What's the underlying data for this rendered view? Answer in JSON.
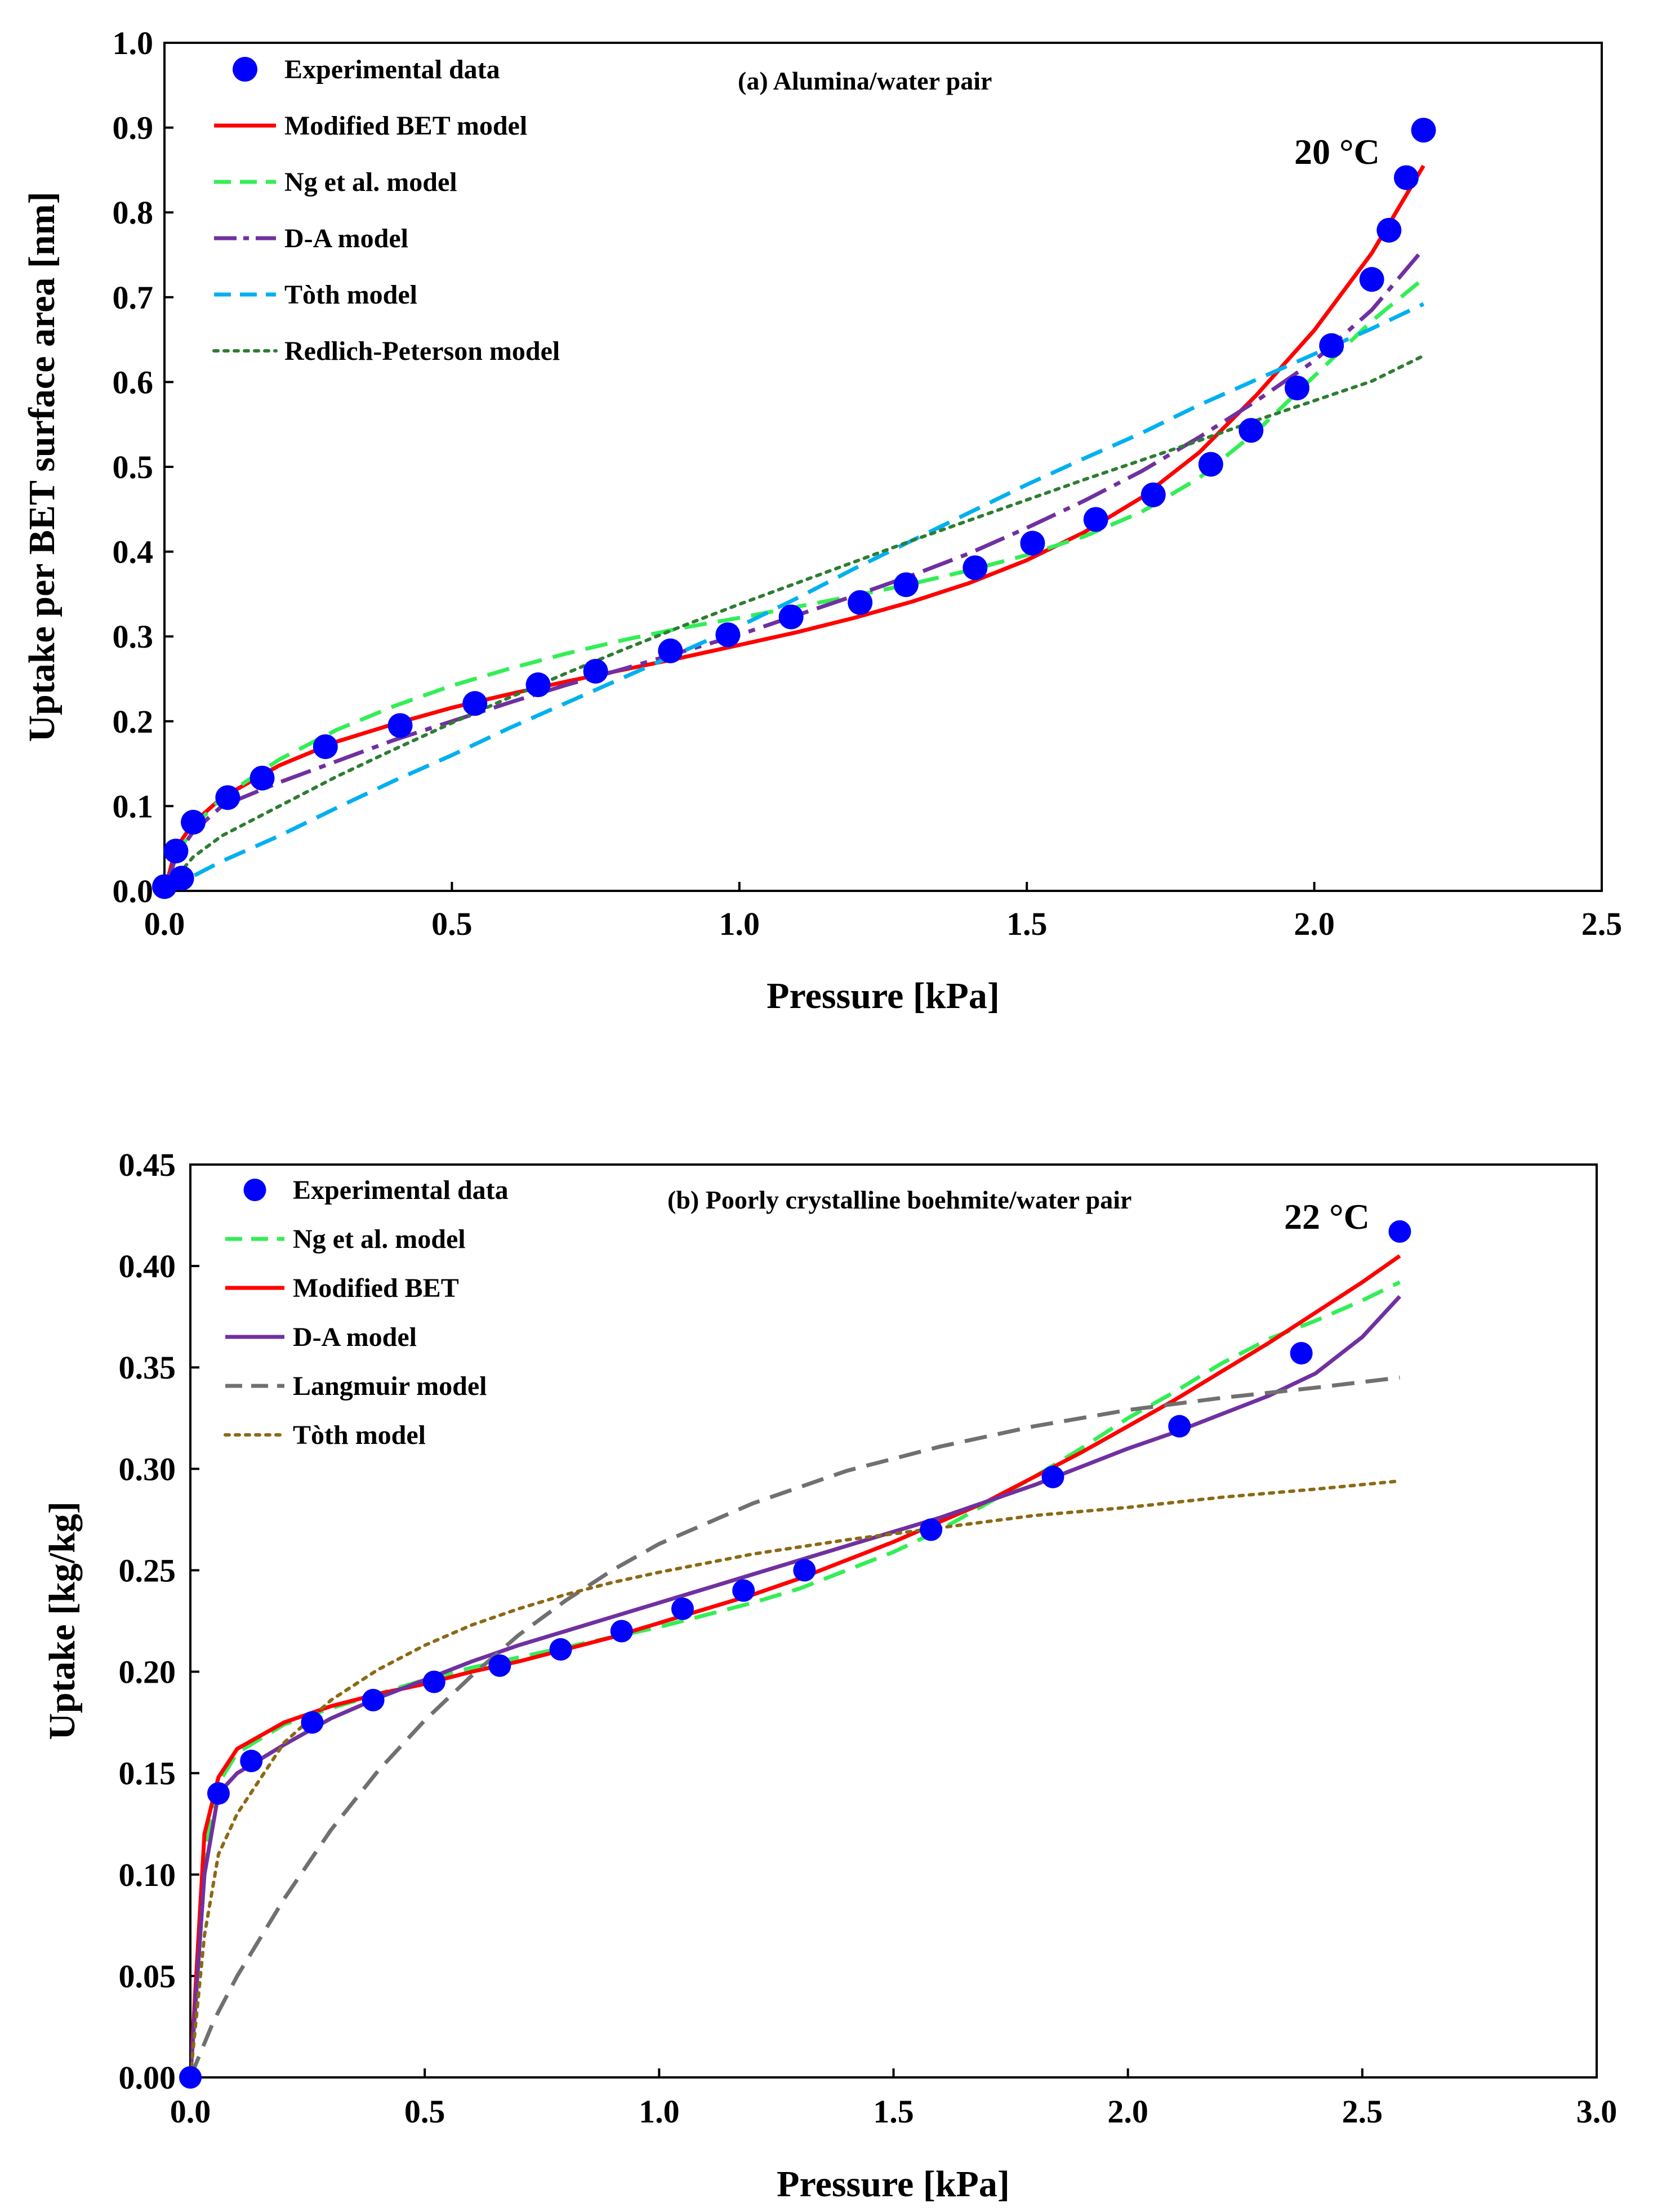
{
  "chart_data": [
    {
      "type": "line",
      "title": "(a) Alumina/water pair",
      "annotation": "20 °C",
      "xlabel": "Pressure [kPa]",
      "ylabel": "Uptake per BET surface area [nm]",
      "xlim": [
        0,
        2.5
      ],
      "ylim": [
        0,
        1.0
      ],
      "xticks": [
        0,
        0.5,
        1.0,
        1.5,
        2.0,
        2.5
      ],
      "yticks": [
        0,
        0.1,
        0.2,
        0.3,
        0.4,
        0.5,
        0.6,
        0.7,
        0.8,
        0.9,
        1.0
      ],
      "xtick_labels": [
        "0.0",
        "0.5",
        "1.0",
        "1.5",
        "2.0",
        "2.5"
      ],
      "ytick_labels": [
        "0.0",
        "0.1",
        "0.2",
        "0.3",
        "0.4",
        "0.5",
        "0.6",
        "0.7",
        "0.8",
        "0.9",
        "1.0"
      ],
      "grid": false,
      "legend_position": "top-left",
      "series": [
        {
          "name": "Experimental data",
          "kind": "marker",
          "color": "#0000ff",
          "x": [
            0.0,
            0.02,
            0.03,
            0.05,
            0.11,
            0.17,
            0.28,
            0.41,
            0.54,
            0.65,
            0.75,
            0.88,
            0.98,
            1.09,
            1.21,
            1.29,
            1.41,
            1.51,
            1.62,
            1.72,
            1.82,
            1.89,
            1.97,
            2.03,
            2.1,
            2.13,
            2.16,
            2.19
          ],
          "y": [
            0.005,
            0.047,
            0.015,
            0.081,
            0.11,
            0.133,
            0.17,
            0.195,
            0.221,
            0.243,
            0.259,
            0.283,
            0.302,
            0.323,
            0.34,
            0.361,
            0.381,
            0.41,
            0.438,
            0.467,
            0.503,
            0.543,
            0.593,
            0.643,
            0.721,
            0.779,
            0.841,
            0.897
          ]
        },
        {
          "name": "Modified BET model",
          "kind": "line",
          "color": "#ff0000",
          "dash": "solid",
          "x": [
            0.0,
            0.02,
            0.05,
            0.1,
            0.2,
            0.3,
            0.4,
            0.5,
            0.6,
            0.7,
            0.8,
            0.9,
            1.0,
            1.1,
            1.2,
            1.3,
            1.4,
            1.5,
            1.6,
            1.7,
            1.8,
            1.9,
            2.0,
            2.1,
            2.19
          ],
          "y": [
            0.0,
            0.05,
            0.08,
            0.11,
            0.148,
            0.176,
            0.197,
            0.216,
            0.232,
            0.247,
            0.261,
            0.275,
            0.29,
            0.305,
            0.322,
            0.341,
            0.363,
            0.39,
            0.423,
            0.464,
            0.517,
            0.585,
            0.661,
            0.752,
            0.855
          ]
        },
        {
          "name": "Ng et al. model",
          "kind": "line",
          "color": "#33ee55",
          "dash": "dashed",
          "x": [
            0.0,
            0.02,
            0.05,
            0.1,
            0.2,
            0.3,
            0.4,
            0.5,
            0.6,
            0.7,
            0.8,
            0.9,
            1.0,
            1.1,
            1.2,
            1.3,
            1.4,
            1.5,
            1.6,
            1.7,
            1.8,
            1.9,
            2.0,
            2.1,
            2.19
          ],
          "y": [
            0.0,
            0.04,
            0.075,
            0.11,
            0.155,
            0.19,
            0.218,
            0.242,
            0.262,
            0.28,
            0.296,
            0.31,
            0.322,
            0.335,
            0.348,
            0.362,
            0.378,
            0.396,
            0.418,
            0.447,
            0.487,
            0.542,
            0.607,
            0.672,
            0.722
          ]
        },
        {
          "name": "D-A model",
          "kind": "line",
          "color": "#7030a0",
          "dash": "long-dash-dot",
          "x": [
            0.0,
            0.02,
            0.05,
            0.1,
            0.2,
            0.3,
            0.4,
            0.5,
            0.6,
            0.7,
            0.8,
            0.9,
            1.0,
            1.1,
            1.2,
            1.3,
            1.4,
            1.5,
            1.6,
            1.7,
            1.8,
            1.9,
            2.0,
            2.1,
            2.19
          ],
          "y": [
            0.0,
            0.04,
            0.07,
            0.1,
            0.128,
            0.153,
            0.178,
            0.2,
            0.222,
            0.243,
            0.262,
            0.282,
            0.302,
            0.325,
            0.348,
            0.372,
            0.398,
            0.428,
            0.46,
            0.495,
            0.535,
            0.578,
            0.625,
            0.685,
            0.757
          ]
        },
        {
          "name": "Tòth model",
          "kind": "line",
          "color": "#00b0f0",
          "dash": "dashed",
          "x": [
            0.0,
            0.1,
            0.2,
            0.3,
            0.4,
            0.5,
            0.6,
            0.7,
            0.8,
            0.9,
            1.0,
            1.1,
            1.2,
            1.3,
            1.4,
            1.5,
            1.6,
            1.7,
            1.8,
            1.9,
            2.0,
            2.1,
            2.19
          ],
          "y": [
            0.0,
            0.035,
            0.065,
            0.098,
            0.13,
            0.16,
            0.192,
            0.222,
            0.252,
            0.282,
            0.312,
            0.345,
            0.38,
            0.413,
            0.446,
            0.479,
            0.51,
            0.54,
            0.573,
            0.603,
            0.633,
            0.663,
            0.692
          ]
        },
        {
          "name": "Redlich-Peterson model",
          "kind": "line",
          "color": "#2e7d32",
          "dash": "dotted",
          "x": [
            0.0,
            0.05,
            0.1,
            0.2,
            0.3,
            0.4,
            0.5,
            0.6,
            0.7,
            0.8,
            0.9,
            1.0,
            1.1,
            1.2,
            1.3,
            1.4,
            1.5,
            1.6,
            1.7,
            1.8,
            1.9,
            2.0,
            2.1,
            2.19
          ],
          "y": [
            0.0,
            0.04,
            0.065,
            0.1,
            0.135,
            0.167,
            0.198,
            0.228,
            0.257,
            0.285,
            0.312,
            0.338,
            0.363,
            0.388,
            0.413,
            0.437,
            0.461,
            0.485,
            0.508,
            0.531,
            0.555,
            0.578,
            0.601,
            0.631
          ]
        }
      ]
    },
    {
      "type": "line",
      "title": "(b) Poorly crystalline boehmite/water pair",
      "annotation": "22 °C",
      "xlabel": "Pressure [kPa]",
      "ylabel": "Uptake [kg/kg]",
      "xlim": [
        0,
        3.0
      ],
      "ylim": [
        0,
        0.45
      ],
      "xticks": [
        0,
        0.5,
        1.0,
        1.5,
        2.0,
        2.5,
        3.0
      ],
      "yticks": [
        0,
        0.05,
        0.1,
        0.15,
        0.2,
        0.25,
        0.3,
        0.35,
        0.4,
        0.45
      ],
      "xtick_labels": [
        "0.0",
        "0.5",
        "1.0",
        "1.5",
        "2.0",
        "2.5",
        "3.0"
      ],
      "ytick_labels": [
        "0.00",
        "0.05",
        "0.10",
        "0.15",
        "0.20",
        "0.25",
        "0.30",
        "0.35",
        "0.40",
        "0.45"
      ],
      "grid": false,
      "legend_position": "top-left",
      "series": [
        {
          "name": "Experimental data",
          "kind": "marker",
          "color": "#0000ff",
          "x": [
            0.0,
            0.06,
            0.13,
            0.26,
            0.39,
            0.52,
            0.66,
            0.79,
            0.92,
            1.05,
            1.18,
            1.31,
            1.58,
            1.84,
            2.11,
            2.37,
            2.58
          ],
          "y": [
            0.0,
            0.14,
            0.156,
            0.175,
            0.186,
            0.195,
            0.203,
            0.211,
            0.22,
            0.231,
            0.24,
            0.25,
            0.27,
            0.296,
            0.321,
            0.357,
            0.417
          ]
        },
        {
          "name": "Ng et al. model",
          "kind": "line",
          "color": "#33ee55",
          "dash": "dashed",
          "x": [
            0.0,
            0.03,
            0.06,
            0.1,
            0.2,
            0.3,
            0.4,
            0.5,
            0.6,
            0.7,
            0.8,
            0.9,
            1.0,
            1.1,
            1.2,
            1.3,
            1.4,
            1.5,
            1.6,
            1.7,
            1.8,
            1.9,
            2.0,
            2.1,
            2.2,
            2.3,
            2.4,
            2.5,
            2.58
          ],
          "y": [
            0.0,
            0.11,
            0.145,
            0.16,
            0.174,
            0.182,
            0.189,
            0.196,
            0.202,
            0.207,
            0.212,
            0.217,
            0.222,
            0.228,
            0.234,
            0.241,
            0.25,
            0.259,
            0.27,
            0.283,
            0.296,
            0.31,
            0.325,
            0.338,
            0.352,
            0.364,
            0.373,
            0.383,
            0.392
          ]
        },
        {
          "name": "Modified BET",
          "kind": "line",
          "color": "#ff0000",
          "dash": "solid",
          "x": [
            0.0,
            0.03,
            0.06,
            0.1,
            0.2,
            0.3,
            0.4,
            0.5,
            0.6,
            0.7,
            0.8,
            0.9,
            1.0,
            1.1,
            1.2,
            1.3,
            1.4,
            1.5,
            1.6,
            1.7,
            1.8,
            1.9,
            2.0,
            2.1,
            2.2,
            2.3,
            2.4,
            2.5,
            2.58
          ],
          "y": [
            0.0,
            0.12,
            0.148,
            0.162,
            0.175,
            0.183,
            0.189,
            0.194,
            0.2,
            0.205,
            0.211,
            0.217,
            0.224,
            0.231,
            0.238,
            0.246,
            0.255,
            0.264,
            0.274,
            0.284,
            0.296,
            0.308,
            0.321,
            0.334,
            0.348,
            0.362,
            0.377,
            0.392,
            0.405
          ]
        },
        {
          "name": "D-A model",
          "kind": "line",
          "color": "#7030a0",
          "dash": "solid",
          "x": [
            0.0,
            0.03,
            0.06,
            0.1,
            0.2,
            0.3,
            0.4,
            0.5,
            0.6,
            0.7,
            0.8,
            0.9,
            1.0,
            1.1,
            1.2,
            1.3,
            1.4,
            1.5,
            1.6,
            1.7,
            1.8,
            1.9,
            2.0,
            2.1,
            2.2,
            2.3,
            2.4,
            2.5,
            2.58
          ],
          "y": [
            0.0,
            0.1,
            0.14,
            0.15,
            0.164,
            0.177,
            0.187,
            0.196,
            0.205,
            0.213,
            0.22,
            0.227,
            0.234,
            0.241,
            0.248,
            0.255,
            0.262,
            0.269,
            0.276,
            0.284,
            0.292,
            0.301,
            0.31,
            0.318,
            0.327,
            0.336,
            0.347,
            0.365,
            0.385
          ]
        },
        {
          "name": "Langmuir model",
          "kind": "line",
          "color": "#707070",
          "dash": "dashed",
          "x": [
            0.0,
            0.05,
            0.1,
            0.2,
            0.3,
            0.4,
            0.5,
            0.6,
            0.7,
            0.8,
            0.9,
            1.0,
            1.2,
            1.4,
            1.6,
            1.8,
            2.0,
            2.2,
            2.4,
            2.58
          ],
          "y": [
            0.0,
            0.028,
            0.05,
            0.088,
            0.122,
            0.151,
            0.176,
            0.198,
            0.218,
            0.235,
            0.25,
            0.263,
            0.283,
            0.299,
            0.311,
            0.321,
            0.329,
            0.335,
            0.34,
            0.345
          ]
        },
        {
          "name": "Tòth model",
          "kind": "line",
          "color": "#8b6914",
          "dash": "dotted",
          "x": [
            0.0,
            0.03,
            0.06,
            0.1,
            0.2,
            0.3,
            0.4,
            0.5,
            0.6,
            0.7,
            0.8,
            0.9,
            1.0,
            1.2,
            1.4,
            1.6,
            1.8,
            2.0,
            2.2,
            2.4,
            2.58
          ],
          "y": [
            0.0,
            0.07,
            0.11,
            0.13,
            0.165,
            0.186,
            0.201,
            0.213,
            0.223,
            0.231,
            0.238,
            0.244,
            0.249,
            0.258,
            0.265,
            0.271,
            0.277,
            0.281,
            0.286,
            0.29,
            0.294
          ]
        }
      ]
    }
  ]
}
